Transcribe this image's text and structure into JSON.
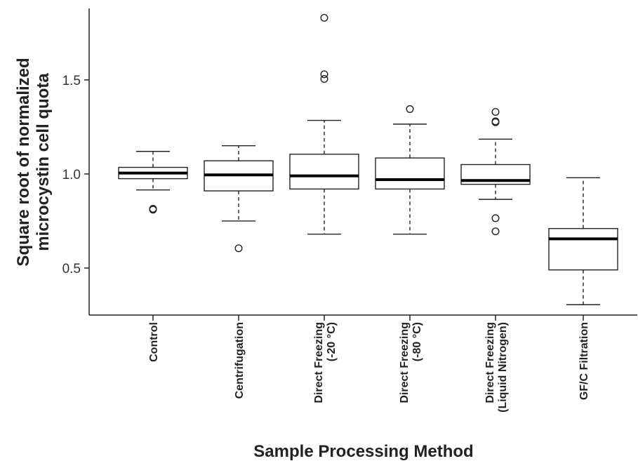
{
  "chart_data": {
    "type": "boxplot",
    "title": "",
    "xlabel": "Sample Processing Method",
    "ylabel_lines": [
      "Square root of normalized",
      "microcystin cell quota"
    ],
    "ylim": [
      0.25,
      1.88
    ],
    "yticks": [
      0.5,
      1.0,
      1.5
    ],
    "ytick_labels": [
      "0.5",
      "1.0",
      "1.5"
    ],
    "grid": false,
    "categories": [
      {
        "label_lines": [
          "Control"
        ],
        "whisker_low": 0.915,
        "q1": 0.975,
        "median": 1.005,
        "q3": 1.035,
        "whisker_high": 1.12,
        "outliers": [
          0.81,
          0.815
        ]
      },
      {
        "label_lines": [
          "Centrifugation"
        ],
        "whisker_low": 0.75,
        "q1": 0.91,
        "median": 0.995,
        "q3": 1.07,
        "whisker_high": 1.15,
        "outliers": [
          0.605
        ]
      },
      {
        "label_lines": [
          "Direct Freezing",
          "(-20 °C)"
        ],
        "whisker_low": 0.68,
        "q1": 0.92,
        "median": 0.99,
        "q3": 1.105,
        "whisker_high": 1.285,
        "outliers": [
          1.505,
          1.53,
          1.83
        ]
      },
      {
        "label_lines": [
          "Direct Freezing",
          "(-80 °C)"
        ],
        "whisker_low": 0.68,
        "q1": 0.92,
        "median": 0.97,
        "q3": 1.085,
        "whisker_high": 1.265,
        "outliers": [
          1.345
        ]
      },
      {
        "label_lines": [
          "Direct Freezing",
          "(Liquid Nitrogen)"
        ],
        "whisker_low": 0.865,
        "q1": 0.945,
        "median": 0.965,
        "q3": 1.05,
        "whisker_high": 1.185,
        "outliers": [
          0.695,
          0.765,
          1.275,
          1.28,
          1.33
        ]
      },
      {
        "label_lines": [
          "GF/C Filtration"
        ],
        "whisker_low": 0.305,
        "q1": 0.49,
        "median": 0.655,
        "q3": 0.71,
        "whisker_high": 0.98,
        "outliers": []
      }
    ]
  }
}
